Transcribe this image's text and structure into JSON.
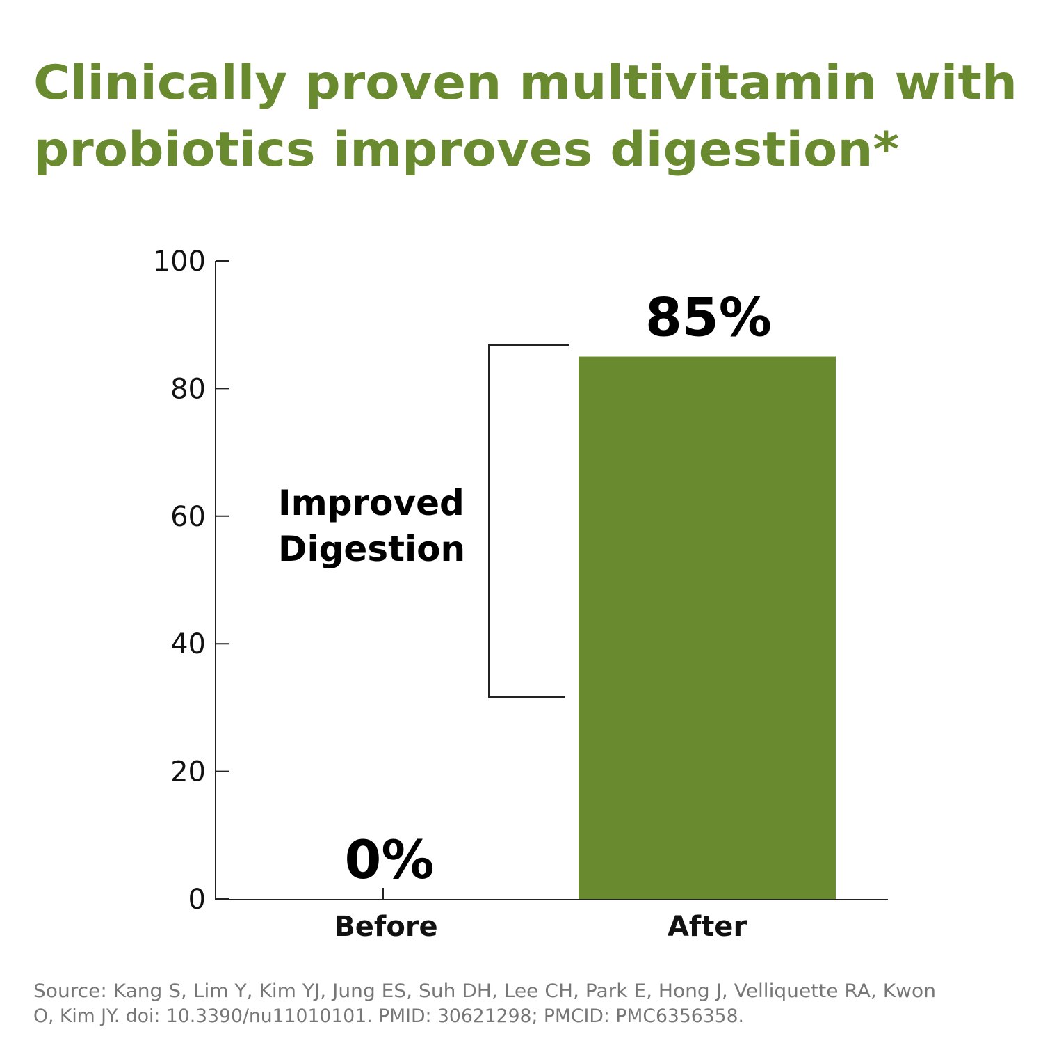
{
  "chart_data": {
    "type": "bar",
    "title": [
      "Clinically proven multivitamin with",
      "probiotics improves digestion*"
    ],
    "categories": [
      "Before",
      "After"
    ],
    "values": [
      0,
      85
    ],
    "value_labels": [
      "0%",
      "85%"
    ],
    "color": "#6a8a2f",
    "ylim": [
      0,
      100
    ],
    "yticks": [
      0,
      20,
      40,
      60,
      80,
      100
    ],
    "annotation": [
      "Improved",
      "Digestion"
    ],
    "source": [
      "Source: Kang S, Lim Y, Kim YJ, Jung ES, Suh DH, Lee CH, Park E, Hong J, Velliquette RA, Kwon",
      "O, Kim JY. doi: 10.3390/nu11010101. PMID: 30621298; PMCID: PMC6356358."
    ]
  }
}
